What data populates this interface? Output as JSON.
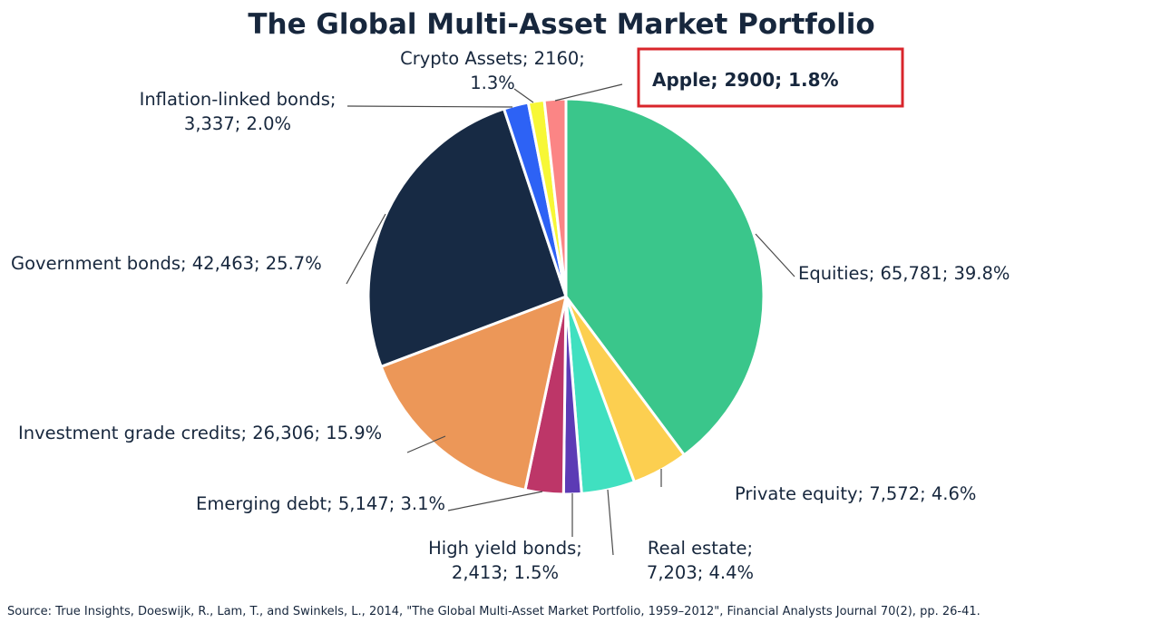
{
  "chart_data": {
    "type": "pie",
    "title": "The Global Multi-Asset Market Portfolio",
    "slices": [
      {
        "label": "Equities; 65,781; 39.8%",
        "value": 65781,
        "percent": 39.8,
        "color": "#3ac68b"
      },
      {
        "label": "Private equity; 7,572; 4.6%",
        "value": 7572,
        "percent": 4.6,
        "color": "#fccf50"
      },
      {
        "label": "Real estate; 7,203; 4.4%",
        "value": 7203,
        "percent": 4.4,
        "color": "#40e0c0"
      },
      {
        "label": "High yield bonds; 2,413; 1.5%",
        "value": 2413,
        "percent": 1.5,
        "color": "#5c3bb5"
      },
      {
        "label": "Emerging debt; 5,147; 3.1%",
        "value": 5147,
        "percent": 3.1,
        "color": "#bd3668"
      },
      {
        "label": "Investment grade credits; 26,306; 15.9%",
        "value": 26306,
        "percent": 15.9,
        "color": "#ec9758"
      },
      {
        "label": "Government bonds; 42,463; 25.7%",
        "value": 42463,
        "percent": 25.7,
        "color": "#172a44"
      },
      {
        "label": "Inflation-linked bonds; 3,337; 2.0%",
        "value": 3337,
        "percent": 2.0,
        "color": "#2d62f5"
      },
      {
        "label": "Crypto Assets; 2160; 1.3%",
        "value": 2160,
        "percent": 1.3,
        "color": "#f7f736"
      },
      {
        "label": "Apple; 2900; 1.8%",
        "value": 2900,
        "percent": 1.8,
        "color": "#fb8585"
      }
    ],
    "label_lines": {
      "equities": "Equities; 65,781; 39.8%",
      "private_equity": "Private equity; 7,572; 4.6%",
      "real_estate_1": "Real estate;",
      "real_estate_2": "7,203; 4.4%",
      "high_yield_1": "High yield bonds;",
      "high_yield_2": "2,413; 1.5%",
      "emerging_debt": "Emerging debt; 5,147; 3.1%",
      "investment_grade": "Investment grade credits; 26,306; 15.9%",
      "government_bonds": "Government bonds; 42,463; 25.7%",
      "inflation_1": "Inflation-linked bonds;",
      "inflation_2": "3,337; 2.0%",
      "crypto_1": "Crypto Assets; 2160;",
      "crypto_2": "1.3%",
      "apple": "Apple; 2900; 1.8%"
    },
    "source": "Source: True Insights, Doeswijk, R., Lam, T., and Swinkels, L., 2014, \"The Global Multi-Asset Market Portfolio, 1959–2012\", Financial Analysts Journal 70(2), pp. 26-41.",
    "highlight_color": "#d9252b"
  }
}
